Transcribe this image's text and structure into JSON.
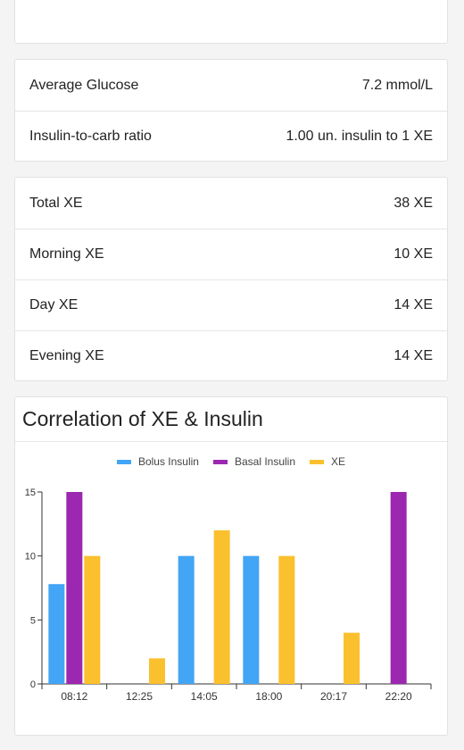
{
  "glucose_card": {
    "rows": [
      {
        "label": "Average Glucose",
        "value": "7.2 mmol/L"
      },
      {
        "label": "Insulin-to-carb ratio",
        "value": "1.00 un. insulin to 1 XE"
      }
    ]
  },
  "xe_card": {
    "rows": [
      {
        "label": "Total XE",
        "value": "38 XE"
      },
      {
        "label": "Morning XE",
        "value": "10 XE"
      },
      {
        "label": "Day XE",
        "value": "14 XE"
      },
      {
        "label": "Evening XE",
        "value": "14 XE"
      }
    ]
  },
  "chart": {
    "title": "Correlation of XE & Insulin"
  },
  "chart_data": {
    "type": "bar",
    "categories": [
      "08:12",
      "12:25",
      "14:05",
      "18:00",
      "20:17",
      "22:20"
    ],
    "series": [
      {
        "name": "Bolus Insulin",
        "color": "#42a5f5",
        "values": [
          7.8,
          0,
          10,
          10,
          0,
          0
        ]
      },
      {
        "name": "Basal Insulin",
        "color": "#9c27b0",
        "values": [
          15,
          0,
          0,
          0,
          0,
          15
        ]
      },
      {
        "name": "XE",
        "color": "#fbc02d",
        "values": [
          10,
          2,
          12,
          10,
          4,
          0
        ]
      }
    ],
    "yticks": [
      "0",
      "5",
      "10",
      "15"
    ],
    "ylim": [
      0,
      15
    ],
    "legend": "top",
    "grid": false
  }
}
